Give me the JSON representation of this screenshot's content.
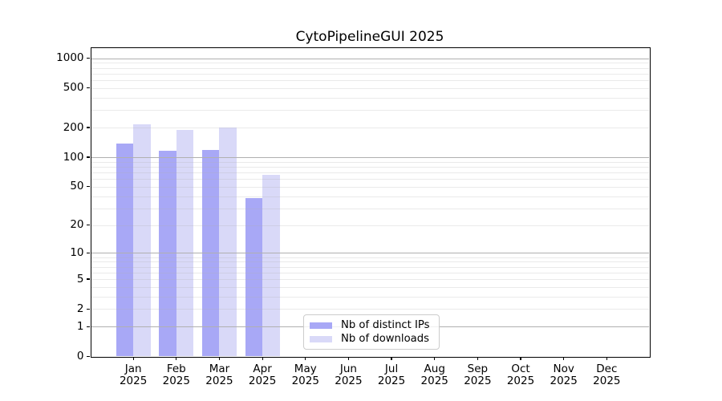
{
  "chart_data": {
    "type": "bar",
    "title": "CytoPipelineGUI 2025",
    "categories": [
      "Jan 2025",
      "Feb 2025",
      "Mar 2025",
      "Apr 2025",
      "May 2025",
      "Jun 2025",
      "Jul 2025",
      "Aug 2025",
      "Sep 2025",
      "Oct 2025",
      "Nov 2025",
      "Dec 2025"
    ],
    "series": [
      {
        "name": "Nb of distinct IPs",
        "color": "#a8a8f6",
        "values": [
          137,
          116,
          119,
          38,
          null,
          null,
          null,
          null,
          null,
          null,
          null,
          null
        ]
      },
      {
        "name": "Nb of downloads",
        "color": "#d9d9f8",
        "values": [
          215,
          190,
          200,
          66,
          null,
          null,
          null,
          null,
          null,
          null,
          null,
          null
        ]
      }
    ],
    "y_scale": "log1p",
    "y_ticks": [
      0,
      1,
      2,
      5,
      10,
      20,
      50,
      100,
      200,
      500,
      1000
    ],
    "ylim": [
      0,
      1288
    ],
    "xlabel": "",
    "ylabel": "",
    "grid": "horizontal major+minor, drawn above bars",
    "legend_position": "lower-center inside plot"
  },
  "colors": {
    "axis": "#000000",
    "grid_major": "#b0b0b0",
    "grid_minor_rgba": "rgba(176,176,176,0.27)",
    "background": "#ffffff"
  }
}
